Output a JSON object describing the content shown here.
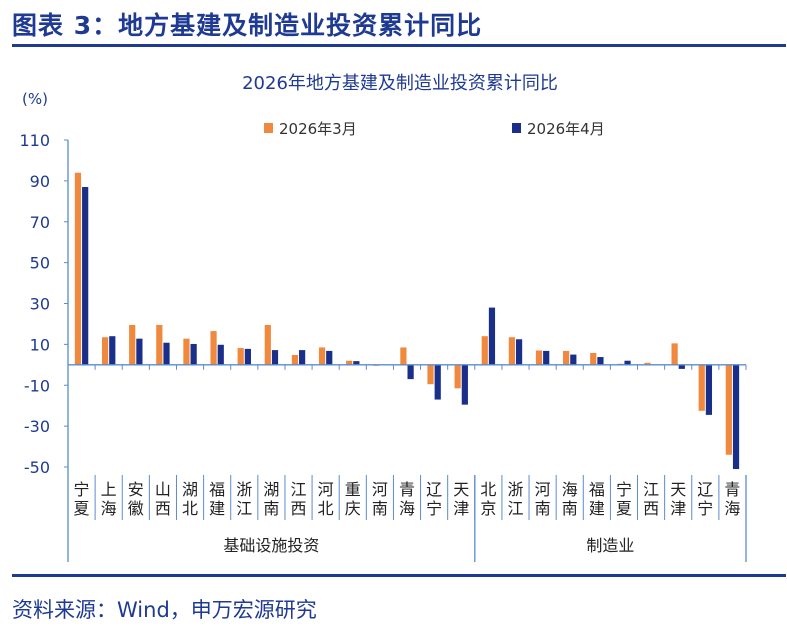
{
  "figure_title": "图表 3：地方基建及制造业投资累计同比",
  "source_note": "资料来源：Wind，申万宏源研究",
  "colors": {
    "title": "#1f3a93",
    "series_mar": "#f0893d",
    "series_apr": "#1a2f8a",
    "axis": "#5b8bd0",
    "tick_text": "#1f3a93"
  },
  "chart_data": {
    "type": "bar",
    "title": "2026年地方基建及制造业投资累计同比",
    "ylabel": "(%)",
    "ylim": [
      -50,
      110
    ],
    "yticks": [
      110,
      90,
      70,
      50,
      30,
      10,
      -10,
      -30,
      -50
    ],
    "legend_position": "top",
    "categories": [
      "宁夏",
      "上海",
      "安徽",
      "山西",
      "湖北",
      "福建",
      "浙江",
      "湖南",
      "江西",
      "河北",
      "重庆",
      "河南",
      "青海",
      "辽宁",
      "天津",
      "北京",
      "浙江",
      "河南",
      "海南",
      "福建",
      "宁夏",
      "江西",
      "天津",
      "辽宁",
      "青海"
    ],
    "groups": [
      {
        "label": "基础设施投资",
        "count": 15
      },
      {
        "label": "制造业",
        "count": 10
      }
    ],
    "series": [
      {
        "name": "2026年3月",
        "values": [
          94,
          13.5,
          19.5,
          19.5,
          12.8,
          16.5,
          8.2,
          19.5,
          4.8,
          8.5,
          2,
          -0.5,
          8.5,
          -9.5,
          -11.5,
          14,
          13.5,
          7,
          6.8,
          5.8,
          0.5,
          1,
          10.5,
          -22.5,
          -44
        ]
      },
      {
        "name": "2026年4月",
        "values": [
          87,
          14,
          12.8,
          10.8,
          10.2,
          9.8,
          7.8,
          7.2,
          7.2,
          6.8,
          1.8,
          0,
          -7,
          -17,
          -19.5,
          28,
          12.5,
          6.8,
          5,
          3.8,
          2,
          0.2,
          -2,
          -24.5,
          -51
        ]
      }
    ]
  }
}
